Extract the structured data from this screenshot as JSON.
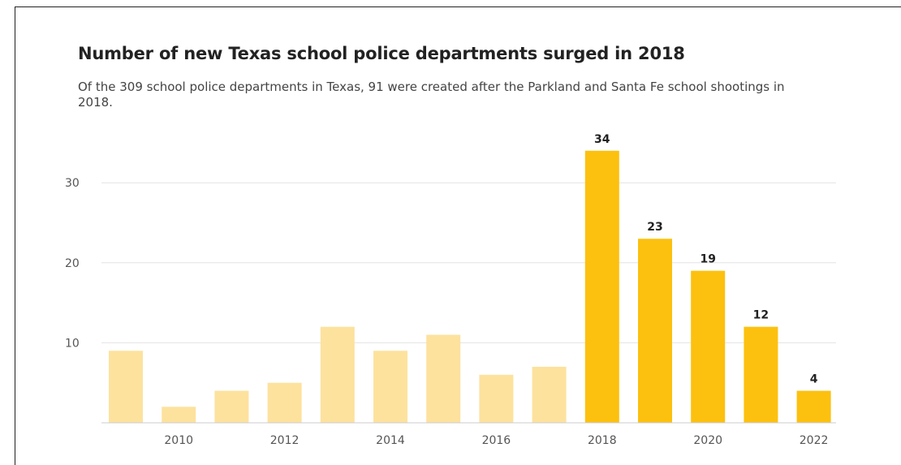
{
  "chart_data": {
    "type": "bar",
    "title": "Number of new Texas school police departments surged in 2018",
    "subtitle": "Of the 309 school police departments in Texas, 91 were created after the Parkland and Santa Fe school shootings in 2018.",
    "categories": [
      2009,
      2010,
      2011,
      2012,
      2013,
      2014,
      2015,
      2016,
      2017,
      2018,
      2019,
      2020,
      2021,
      2022
    ],
    "values": [
      9,
      2,
      4,
      5,
      12,
      9,
      11,
      6,
      7,
      34,
      23,
      19,
      12,
      4
    ],
    "data_labels": [
      "",
      "",
      "",
      "",
      "",
      "",
      "",
      "",
      "",
      "34",
      "23",
      "19",
      "12",
      "4"
    ],
    "highlight_from": 2018,
    "x_tick_labels": [
      "2010",
      "2012",
      "2014",
      "2016",
      "2018",
      "2020",
      "2022"
    ],
    "y_ticks": [
      10,
      20,
      30
    ],
    "ylim": [
      0,
      35
    ],
    "grid": true,
    "colors": {
      "muted": "#fde29e",
      "highlight": "#fcc10f",
      "grid": "#e3e3e3",
      "axis": "#cccccc"
    }
  }
}
